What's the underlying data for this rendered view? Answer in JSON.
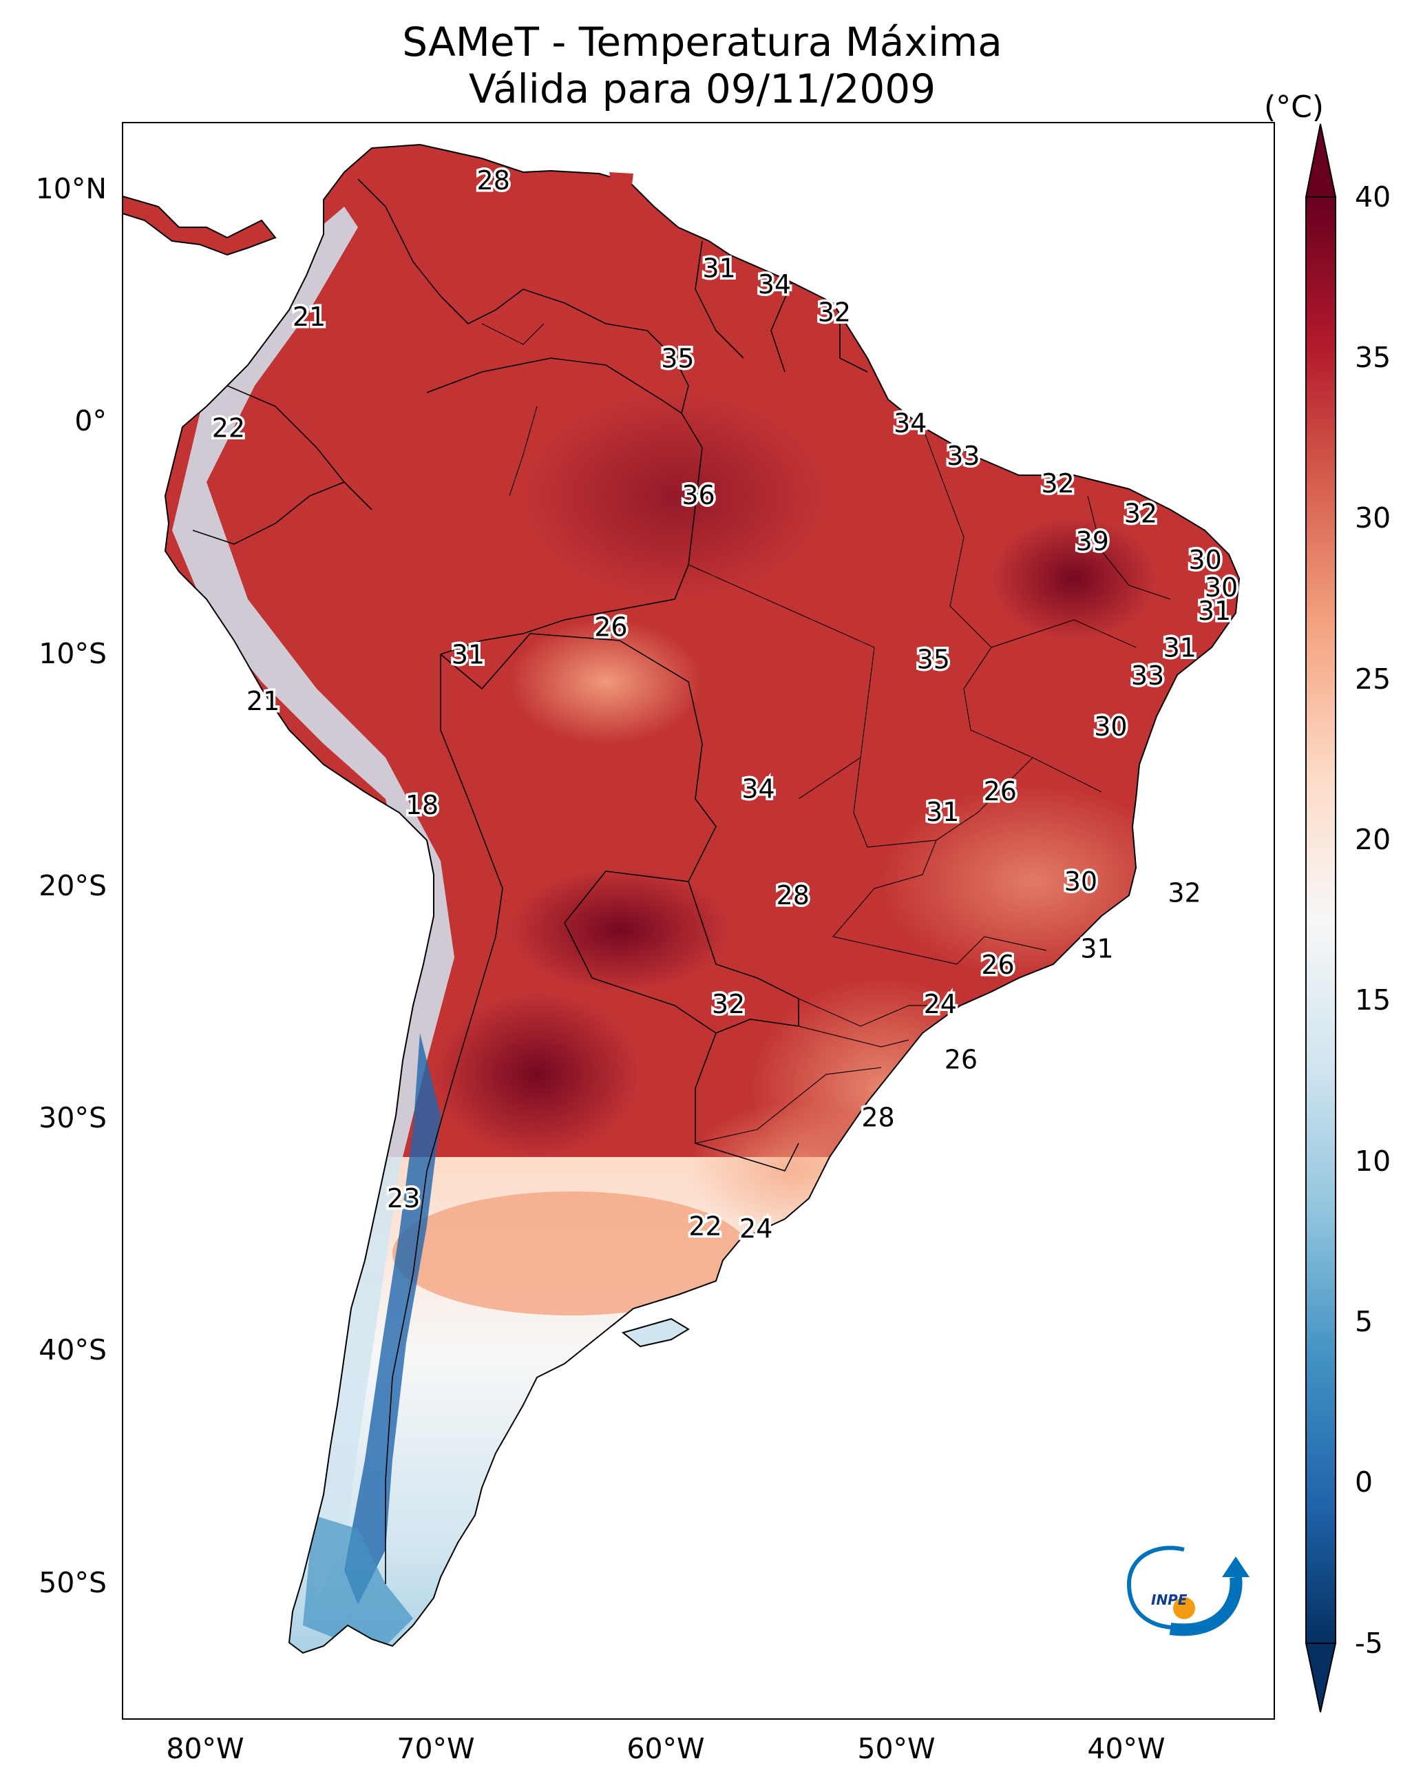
{
  "title": {
    "line1": "SAMeT - Temperatura Máxima",
    "line2": "Válida para 09/11/2009"
  },
  "axes": {
    "lat_labels": [
      "10°N",
      "0°",
      "10°S",
      "20°S",
      "30°S",
      "40°S",
      "50°S"
    ],
    "lon_labels": [
      "80°W",
      "70°W",
      "60°W",
      "50°W",
      "40°W"
    ]
  },
  "colorbar": {
    "unit": "(°C)",
    "ticks": [
      "40",
      "35",
      "30",
      "25",
      "20",
      "15",
      "10",
      "5",
      "0",
      "-5"
    ],
    "range": [
      -5,
      40
    ],
    "colors": [
      "#67001f",
      "#b2182b",
      "#d6604d",
      "#f4a582",
      "#fddbc7",
      "#f7f7f7",
      "#d1e5f0",
      "#92c5de",
      "#4393c3",
      "#2166ac",
      "#053061"
    ]
  },
  "map": {
    "extent_lon": [
      -83,
      -33
    ],
    "extent_lat": [
      -56,
      13
    ],
    "station_labels": [
      {
        "text": "28",
        "lon": -66.9,
        "lat": 10.5
      },
      {
        "text": "31",
        "lon": -57.1,
        "lat": 6.7
      },
      {
        "text": "34",
        "lon": -54.7,
        "lat": 6.0
      },
      {
        "text": "32",
        "lon": -52.1,
        "lat": 4.8
      },
      {
        "text": "21",
        "lon": -74.9,
        "lat": 4.6
      },
      {
        "text": "35",
        "lon": -58.9,
        "lat": 2.8
      },
      {
        "text": "34",
        "lon": -48.8,
        "lat": 0.0
      },
      {
        "text": "22",
        "lon": -78.4,
        "lat": -0.2
      },
      {
        "text": "33",
        "lon": -46.5,
        "lat": -1.4
      },
      {
        "text": "32",
        "lon": -42.4,
        "lat": -2.6
      },
      {
        "text": "36",
        "lon": -58.0,
        "lat": -3.1
      },
      {
        "text": "32",
        "lon": -38.8,
        "lat": -3.9
      },
      {
        "text": "39",
        "lon": -40.9,
        "lat": -5.1
      },
      {
        "text": "30",
        "lon": -36.0,
        "lat": -5.9
      },
      {
        "text": "30",
        "lon": -35.3,
        "lat": -7.1
      },
      {
        "text": "31",
        "lon": -35.6,
        "lat": -8.1
      },
      {
        "text": "26",
        "lon": -61.8,
        "lat": -8.8
      },
      {
        "text": "31",
        "lon": -37.1,
        "lat": -9.7
      },
      {
        "text": "31",
        "lon": -68.0,
        "lat": -10.0
      },
      {
        "text": "35",
        "lon": -47.8,
        "lat": -10.2
      },
      {
        "text": "33",
        "lon": -38.5,
        "lat": -10.9
      },
      {
        "text": "21",
        "lon": -76.9,
        "lat": -12.0
      },
      {
        "text": "30",
        "lon": -40.1,
        "lat": -13.1
      },
      {
        "text": "26",
        "lon": -44.9,
        "lat": -15.9
      },
      {
        "text": "34",
        "lon": -55.4,
        "lat": -15.8
      },
      {
        "text": "31",
        "lon": -47.4,
        "lat": -16.8
      },
      {
        "text": "18",
        "lon": -70.0,
        "lat": -16.5
      },
      {
        "text": "30",
        "lon": -41.4,
        "lat": -19.8
      },
      {
        "text": "32",
        "lon": -36.9,
        "lat": -20.3
      },
      {
        "text": "28",
        "lon": -53.9,
        "lat": -20.4
      },
      {
        "text": "31",
        "lon": -40.7,
        "lat": -22.7
      },
      {
        "text": "26",
        "lon": -45.0,
        "lat": -23.4
      },
      {
        "text": "32",
        "lon": -56.7,
        "lat": -25.1
      },
      {
        "text": "24",
        "lon": -47.5,
        "lat": -25.1
      },
      {
        "text": "26",
        "lon": -46.6,
        "lat": -27.5
      },
      {
        "text": "28",
        "lon": -50.2,
        "lat": -30.0
      },
      {
        "text": "23",
        "lon": -70.8,
        "lat": -33.5
      },
      {
        "text": "22",
        "lon": -57.7,
        "lat": -34.7
      },
      {
        "text": "24",
        "lon": -55.5,
        "lat": -34.8
      }
    ]
  }
}
